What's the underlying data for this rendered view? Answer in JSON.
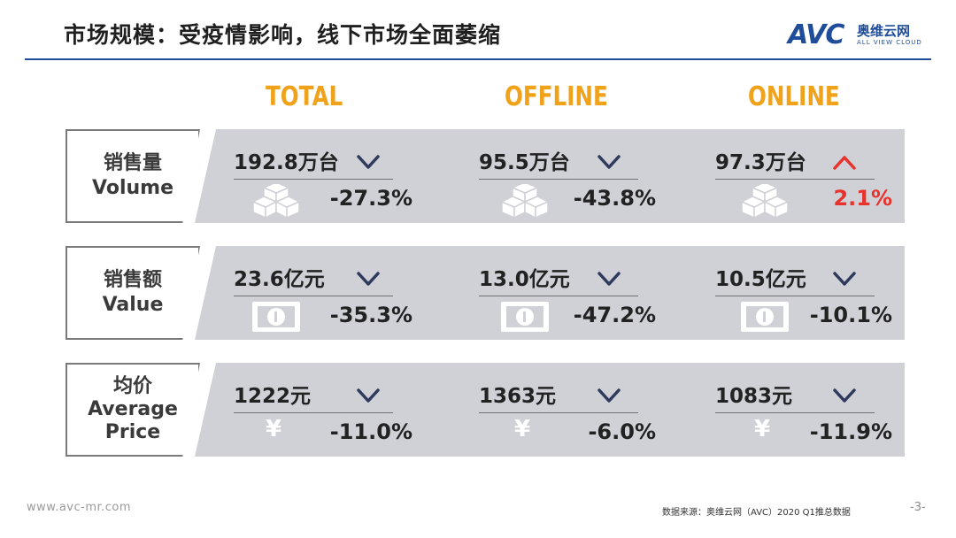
{
  "title": "市场规模：受疫情影响，线下市场全面萎缩",
  "logo": {
    "mark": "AVC",
    "cn": "奥维云网",
    "en": "ALL VIEW CLOUD"
  },
  "columns": [
    "TOTAL",
    "OFFLINE",
    "ONLINE"
  ],
  "rows": [
    {
      "label_cn": "销售量",
      "label_en": "Volume",
      "icon": "boxes-icon",
      "cells": [
        {
          "value": "192.8万台",
          "change": "-27.3%",
          "trend": "down"
        },
        {
          "value": "95.5万台",
          "change": "-43.8%",
          "trend": "down"
        },
        {
          "value": "97.3万台",
          "change": "2.1%",
          "trend": "up"
        }
      ]
    },
    {
      "label_cn": "销售额",
      "label_en": "Value",
      "icon": "banknote-icon",
      "cells": [
        {
          "value": "23.6亿元",
          "change": "-35.3%",
          "trend": "down"
        },
        {
          "value": "13.0亿元",
          "change": "-47.2%",
          "trend": "down"
        },
        {
          "value": "10.5亿元",
          "change": "-10.1%",
          "trend": "down"
        }
      ]
    },
    {
      "label_cn": "均价",
      "label_en_1": "Average",
      "label_en_2": "Price",
      "icon": "yen-icon",
      "icon_glyph": "¥",
      "cells": [
        {
          "value": "1222元",
          "change": "-11.0%",
          "trend": "down"
        },
        {
          "value": "1363元",
          "change": "-6.0%",
          "trend": "down"
        },
        {
          "value": "1083元",
          "change": "-11.9%",
          "trend": "down"
        }
      ]
    }
  ],
  "footer": {
    "site": "www.avc-mr.com",
    "source": "数据来源：奥维云网（AVC）2020 Q1推总数据",
    "page": "-3-"
  },
  "colors": {
    "accent": "#f0a21a",
    "brand": "#1f4d99",
    "down": "#2e3a5c",
    "up": "#e8332c",
    "band": "#d0d0d7"
  }
}
